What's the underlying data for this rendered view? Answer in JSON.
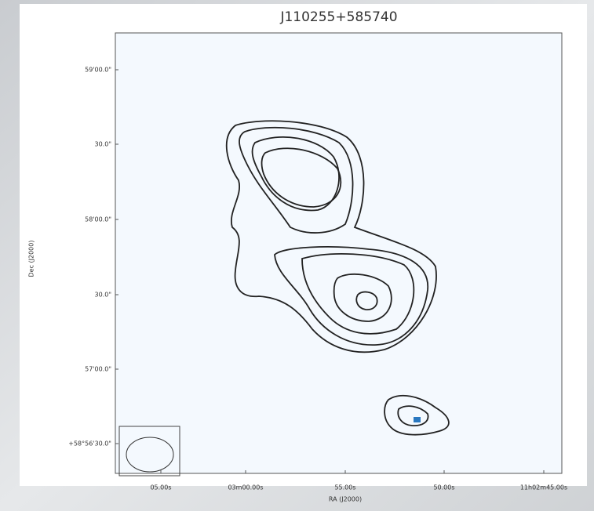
{
  "figure": {
    "title": "J110255+585740",
    "x_axis": {
      "label": "RA (J2000)",
      "ticks": [
        "05.00s",
        "03m00.00s",
        "55.00s",
        "50.00s",
        "11h02m45.00s"
      ]
    },
    "y_axis": {
      "label": "Dec (J2000)",
      "ticks": [
        "59'00.0\"",
        "30.0\"",
        "58'00.0\"",
        "30.0\"",
        "57'00.0\"",
        "+58°56'30.0\""
      ]
    }
  }
}
